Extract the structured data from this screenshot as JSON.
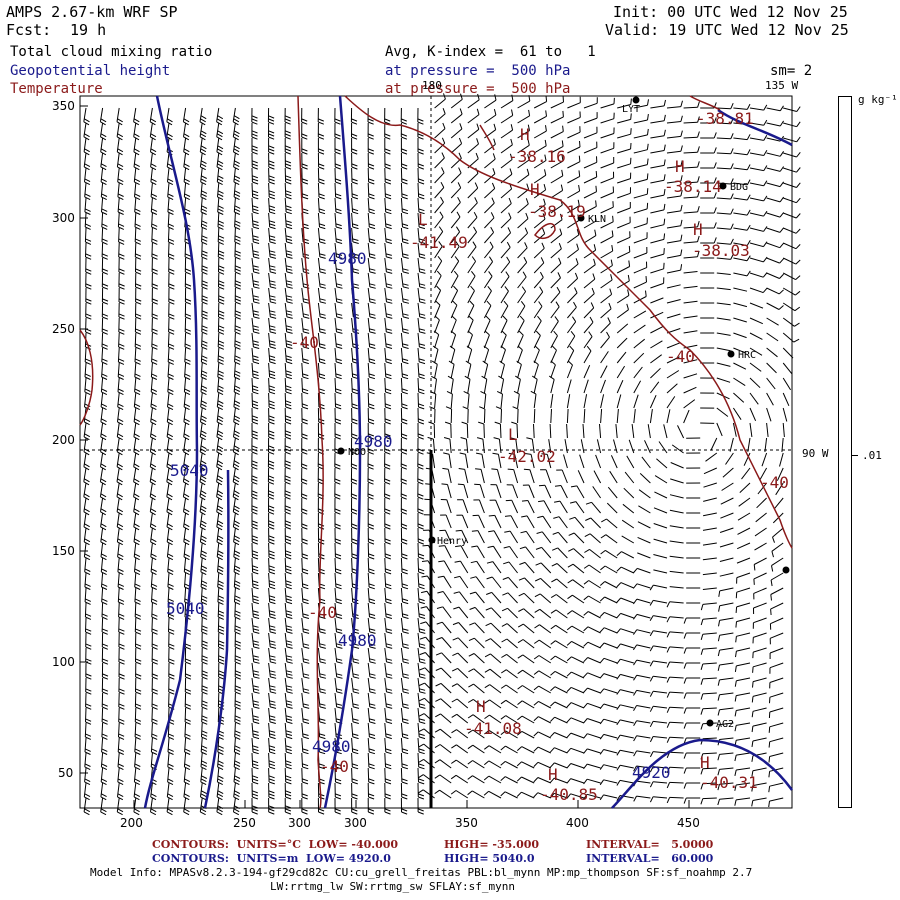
{
  "header": {
    "model": "AMPS 2.67-km WRF SP",
    "fcst_label": "Fcst:",
    "fcst_value": "19 h",
    "init": "Init: 00 UTC Wed 12 Nov 25",
    "valid": "Valid: 19 UTC Wed 12 Nov 25",
    "field1": "Total cloud mixing ratio",
    "field2": "Geopotential height",
    "field3": "Temperature",
    "kindex": "Avg, K-index =  61 to   1",
    "pressure1": "at pressure =  500 hPa",
    "pressure2": "at pressure =  500 hPa",
    "sm": "sm= 2",
    "lon135": "135 W",
    "lon180": "180",
    "lon90": "90 W",
    "units_cb": "g kg⁻¹",
    "cb_val": ".01"
  },
  "axes": {
    "x_ticks": [
      "200",
      "250",
      "300",
      "350",
      "400",
      "450"
    ],
    "y_ticks": [
      "350",
      "300",
      "250",
      "200",
      "150",
      "100",
      "50"
    ]
  },
  "stations": [
    {
      "name": "LYT"
    },
    {
      "name": "BDG"
    },
    {
      "name": "KLN"
    },
    {
      "name": "HRC"
    },
    {
      "name": "NOO"
    },
    {
      "name": "Henry"
    },
    {
      "name": "AG2"
    },
    {
      "name": ""
    }
  ],
  "labels": {
    "h1": "H",
    "v1": "-38.16",
    "h2": "H",
    "v2": "-38.19",
    "h3": "H",
    "v3": "-38.14",
    "h4": "H",
    "v4": "-38.03",
    "h5": "H",
    "v5": "-38.81",
    "l1": "L",
    "v6": "-41.49",
    "l2": "L",
    "v7": "-42.02",
    "h6": "H",
    "v8": "-41.08",
    "h7": "H",
    "v9": "-40.85",
    "h8": "H",
    "v10": "-40.31",
    "t40a": "-40",
    "t40b": "-40",
    "t40c": "-40",
    "t40d": "-40",
    "t40e": "-40",
    "z4980a": "4980",
    "z4980b": "4980",
    "z4980c": "4980",
    "z4980d": "4980",
    "z5040a": "5040",
    "z5040b": "5040",
    "z4920": "4920"
  },
  "footer": {
    "c1_label": "CONTOURS:",
    "c1_units": "UNITS=°C",
    "c1_low": "LOW= -40.000",
    "c1_high": "HIGH= -35.000",
    "c1_int": "INTERVAL=",
    "c1_intv": "5.0000",
    "c2_label": "CONTOURS:",
    "c2_units": "UNITS=m",
    "c2_low": "LOW= 4920.0",
    "c2_high": "HIGH= 5040.0",
    "c2_int": "INTERVAL=",
    "c2_intv": "60.000",
    "info1": "Model Info: MPASv8.2.3-194-gf29cd82c CU:cu_grell_freitas PBL:bl_mynn MP:mp_thompson SF:sf_noahmp 2.7",
    "info2": "LW:rrtmg_lw SW:rrtmg_sw SFLAY:sf_mynn"
  },
  "colors": {
    "blue": "#1a1a8c",
    "red": "#8b1a1a",
    "black": "#000000"
  }
}
